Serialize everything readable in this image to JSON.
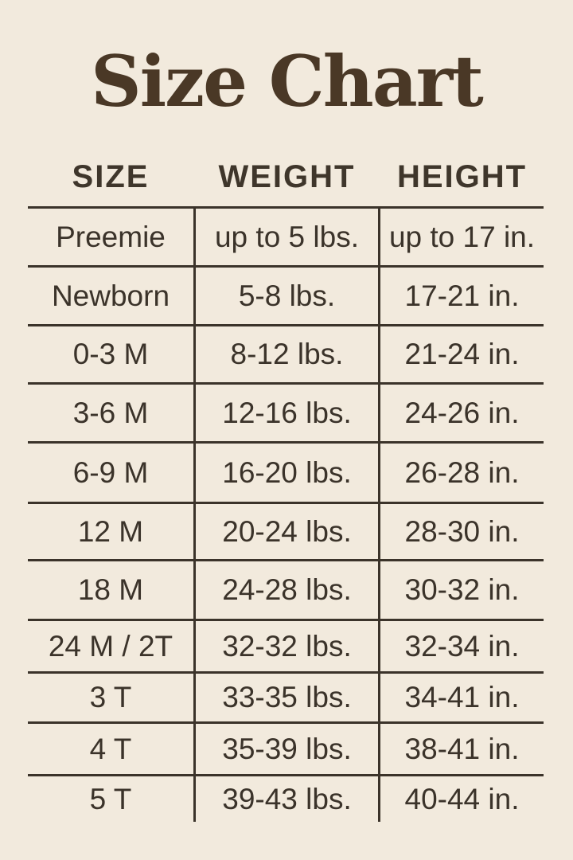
{
  "page": {
    "background_color": "#F2EADD",
    "ink_color": "#3B332A",
    "title_color": "#4A3826"
  },
  "title": "Size Chart",
  "table": {
    "headers": [
      "SIZE",
      "WEIGHT",
      "HEIGHT"
    ],
    "rows": [
      {
        "size": "Preemie",
        "weight": "up to 5 lbs.",
        "height": "up to 17 in."
      },
      {
        "size": "Newborn",
        "weight": "5-8 lbs.",
        "height": "17-21 in."
      },
      {
        "size": "0-3 M",
        "weight": "8-12 lbs.",
        "height": "21-24 in."
      },
      {
        "size": "3-6 M",
        "weight": "12-16 lbs.",
        "height": "24-26 in."
      },
      {
        "size": "6-9 M",
        "weight": "16-20 lbs.",
        "height": "26-28 in."
      },
      {
        "size": "12 M",
        "weight": "20-24 lbs.",
        "height": "28-30 in."
      },
      {
        "size": "18 M",
        "weight": "24-28 lbs.",
        "height": "30-32 in."
      },
      {
        "size": "24 M / 2T",
        "weight": "32-32 lbs.",
        "height": "32-34 in."
      },
      {
        "size": "3 T",
        "weight": "33-35 lbs.",
        "height": "34-41 in."
      },
      {
        "size": "4 T",
        "weight": "35-39 lbs.",
        "height": "38-41 in."
      },
      {
        "size": "5 T",
        "weight": "39-43 lbs.",
        "height": "40-44 in."
      }
    ]
  },
  "chart_data": {
    "type": "table",
    "title": "Size Chart",
    "columns": [
      "SIZE",
      "WEIGHT",
      "HEIGHT"
    ],
    "rows": [
      [
        "Preemie",
        "up to 5 lbs.",
        "up to 17 in."
      ],
      [
        "Newborn",
        "5-8 lbs.",
        "17-21 in."
      ],
      [
        "0-3 M",
        "8-12 lbs.",
        "21-24 in."
      ],
      [
        "3-6 M",
        "12-16 lbs.",
        "24-26 in."
      ],
      [
        "6-9 M",
        "16-20 lbs.",
        "26-28 in."
      ],
      [
        "12 M",
        "20-24 lbs.",
        "28-30 in."
      ],
      [
        "18 M",
        "24-28 lbs.",
        "30-32 in."
      ],
      [
        "24 M / 2T",
        "32-32 lbs.",
        "32-34 in."
      ],
      [
        "3 T",
        "33-35 lbs.",
        "34-41 in."
      ],
      [
        "4 T",
        "35-39 lbs.",
        "38-41 in."
      ],
      [
        "5 T",
        "39-43 lbs.",
        "40-44 in."
      ]
    ],
    "layout": {
      "grid": "horizontal rules between rows, two vertical column dividers extending below last row, no bottom rule"
    }
  }
}
